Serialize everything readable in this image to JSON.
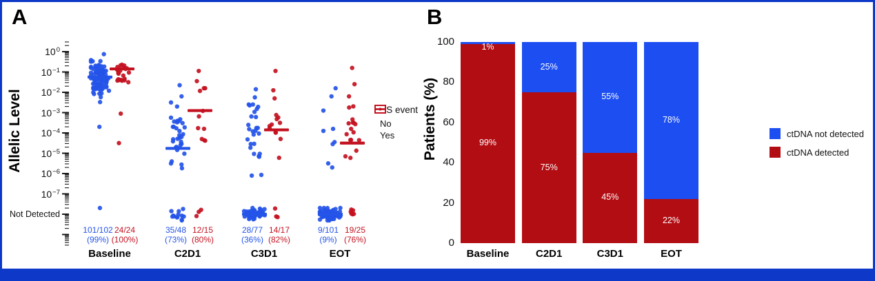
{
  "colors": {
    "blue": "#1c4ef2",
    "red": "#b20d13",
    "point_blue": "#2454e8",
    "point_red": "#c31120",
    "frame_blue": "#0d38c8",
    "bar_label_white": "#ffffff"
  },
  "panels": {
    "a_letter": "A",
    "b_letter": "B"
  },
  "chart_data": [
    {
      "type": "scatter",
      "panel": "A",
      "ylabel": "Allelic Level",
      "yscale": "log10",
      "ytick_exponents": [
        0,
        -1,
        -2,
        -3,
        -4,
        -5,
        -6,
        -7
      ],
      "nd_label": "Not Detected",
      "categories": [
        "Baseline",
        "C2D1",
        "C3D1",
        "EOT"
      ],
      "legend": {
        "title": "PFS event",
        "entries": [
          {
            "label": "No",
            "color_key": "blue"
          },
          {
            "label": "Yes",
            "color_key": "red"
          }
        ]
      },
      "groups": [
        {
          "category": "Baseline",
          "pfs": "No",
          "fraction": "101/102",
          "percent": "(99%)",
          "detected": 101,
          "total": 102,
          "median_log10": -1.25,
          "nd_median": false,
          "cluster": {
            "n": 100,
            "mean": -1.35,
            "sd": 0.5,
            "min": -2.6,
            "max": -0.05
          },
          "extra": [
            -3.7
          ],
          "nd_count": 1
        },
        {
          "category": "Baseline",
          "pfs": "Yes",
          "fraction": "24/24",
          "percent": "(100%)",
          "detected": 24,
          "total": 24,
          "median_log10": -0.85,
          "nd_median": false,
          "cluster": {
            "n": 22,
            "mean": -1.0,
            "sd": 0.42,
            "min": -1.9,
            "max": -0.3
          },
          "extra": [
            -3.05,
            -4.5
          ],
          "nd_count": 0
        },
        {
          "category": "C2D1",
          "pfs": "No",
          "fraction": "35/48",
          "percent": "(73%)",
          "detected": 35,
          "total": 48,
          "median_log10": -4.76,
          "nd_median": false,
          "cluster": {
            "n": 32,
            "mean": -4.4,
            "sd": 0.85,
            "min": -6.0,
            "max": -2.7
          },
          "extra": [
            -1.65,
            -2.2,
            -2.5
          ],
          "nd_count": 13
        },
        {
          "category": "C2D1",
          "pfs": "Yes",
          "fraction": "12/15",
          "percent": "(80%)",
          "detected": 12,
          "total": 15,
          "median_log10": -2.9,
          "nd_median": false,
          "cluster": {
            "n": 10,
            "mean": -3.0,
            "sd": 0.85,
            "min": -4.9,
            "max": -1.8
          },
          "extra": [
            -0.95,
            -1.45
          ],
          "nd_count": 3
        },
        {
          "category": "C3D1",
          "pfs": "No",
          "fraction": "28/77",
          "percent": "(36%)",
          "detected": 28,
          "total": 77,
          "median_log10": null,
          "nd_median": true,
          "cluster": {
            "n": 26,
            "mean": -4.1,
            "sd": 1.0,
            "min": -6.1,
            "max": -2.6
          },
          "extra": [
            -1.85,
            -2.25
          ],
          "nd_count": 49
        },
        {
          "category": "C3D1",
          "pfs": "Yes",
          "fraction": "14/17",
          "percent": "(82%)",
          "detected": 14,
          "total": 17,
          "median_log10": -3.85,
          "nd_median": false,
          "cluster": {
            "n": 12,
            "mean": -3.8,
            "sd": 0.85,
            "min": -5.5,
            "max": -2.3
          },
          "extra": [
            -0.95,
            -1.9
          ],
          "nd_count": 3
        },
        {
          "category": "EOT",
          "pfs": "No",
          "fraction": "9/101",
          "percent": "(9%)",
          "detected": 9,
          "total": 101,
          "median_log10": null,
          "nd_median": true,
          "cluster": {
            "n": 0,
            "mean": 0,
            "sd": 1,
            "min": 0,
            "max": 0
          },
          "extra": [
            -1.8,
            -2.2,
            -2.9,
            -3.8,
            -3.9,
            -4.45,
            -4.55,
            -5.5,
            -5.7
          ],
          "nd_count": 92
        },
        {
          "category": "EOT",
          "pfs": "Yes",
          "fraction": "19/25",
          "percent": "(76%)",
          "detected": 19,
          "total": 25,
          "median_log10": -4.5,
          "nd_median": false,
          "cluster": {
            "n": 17,
            "mean": -4.0,
            "sd": 1.1,
            "min": -5.7,
            "max": -2.2
          },
          "extra": [
            -0.8,
            -1.6
          ],
          "nd_count": 6
        }
      ]
    },
    {
      "type": "bar",
      "stacked": true,
      "panel": "B",
      "ylabel": "Patients (%)",
      "ylim": [
        0,
        100
      ],
      "yticks": [
        0,
        20,
        40,
        60,
        80,
        100
      ],
      "categories": [
        "Baseline",
        "C2D1",
        "C3D1",
        "EOT"
      ],
      "series": [
        {
          "name": "ctDNA detected",
          "color_key": "red",
          "values": [
            99,
            75,
            45,
            22
          ],
          "labels": [
            "99%",
            "75%",
            "45%",
            "22%"
          ]
        },
        {
          "name": "ctDNA not detected",
          "color_key": "blue",
          "values": [
            1,
            25,
            55,
            78
          ],
          "labels": [
            "1%",
            "25%",
            "55%",
            "78%"
          ]
        }
      ],
      "legend": [
        {
          "label": "ctDNA not detected",
          "color_key": "blue"
        },
        {
          "label": "ctDNA detected",
          "color_key": "red"
        }
      ]
    }
  ]
}
